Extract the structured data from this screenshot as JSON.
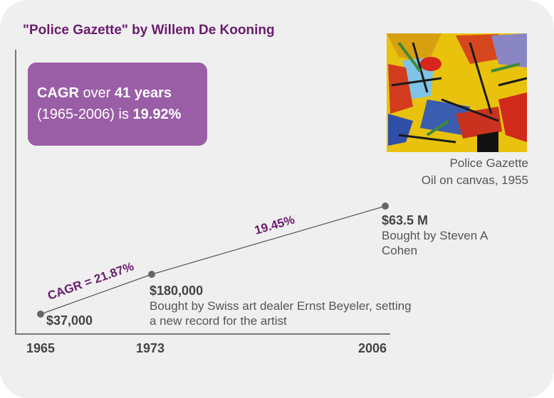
{
  "title": "\"Police Gazette\" by Willem De Kooning",
  "summary": {
    "cagr": "CAGR",
    "over": "over",
    "years": "41 years",
    "period": "(1965-2006) is",
    "rate": "19.92%"
  },
  "painting": {
    "caption_title": "Police Gazette",
    "caption_medium": "Oil on canvas, 1955"
  },
  "chart_data": {
    "type": "line",
    "title": "\"Police Gazette\" by Willem De Kooning",
    "x": [
      "1965",
      "1973",
      "2006"
    ],
    "values_usd": [
      37000,
      180000,
      63500000
    ],
    "point_labels": [
      "$37,000",
      "$180,000",
      "$63.5 M"
    ],
    "point_notes": [
      "",
      "Bought by Swiss art dealer Ernst Beyeler, setting a new record for the artist",
      "Bought by Steven A Cohen"
    ],
    "segment_labels": [
      "CAGR = 21.87%",
      "19.45%"
    ],
    "colors": {
      "line": "#555555",
      "accent": "#6a1b6e",
      "box": "#9a5ea6"
    }
  }
}
